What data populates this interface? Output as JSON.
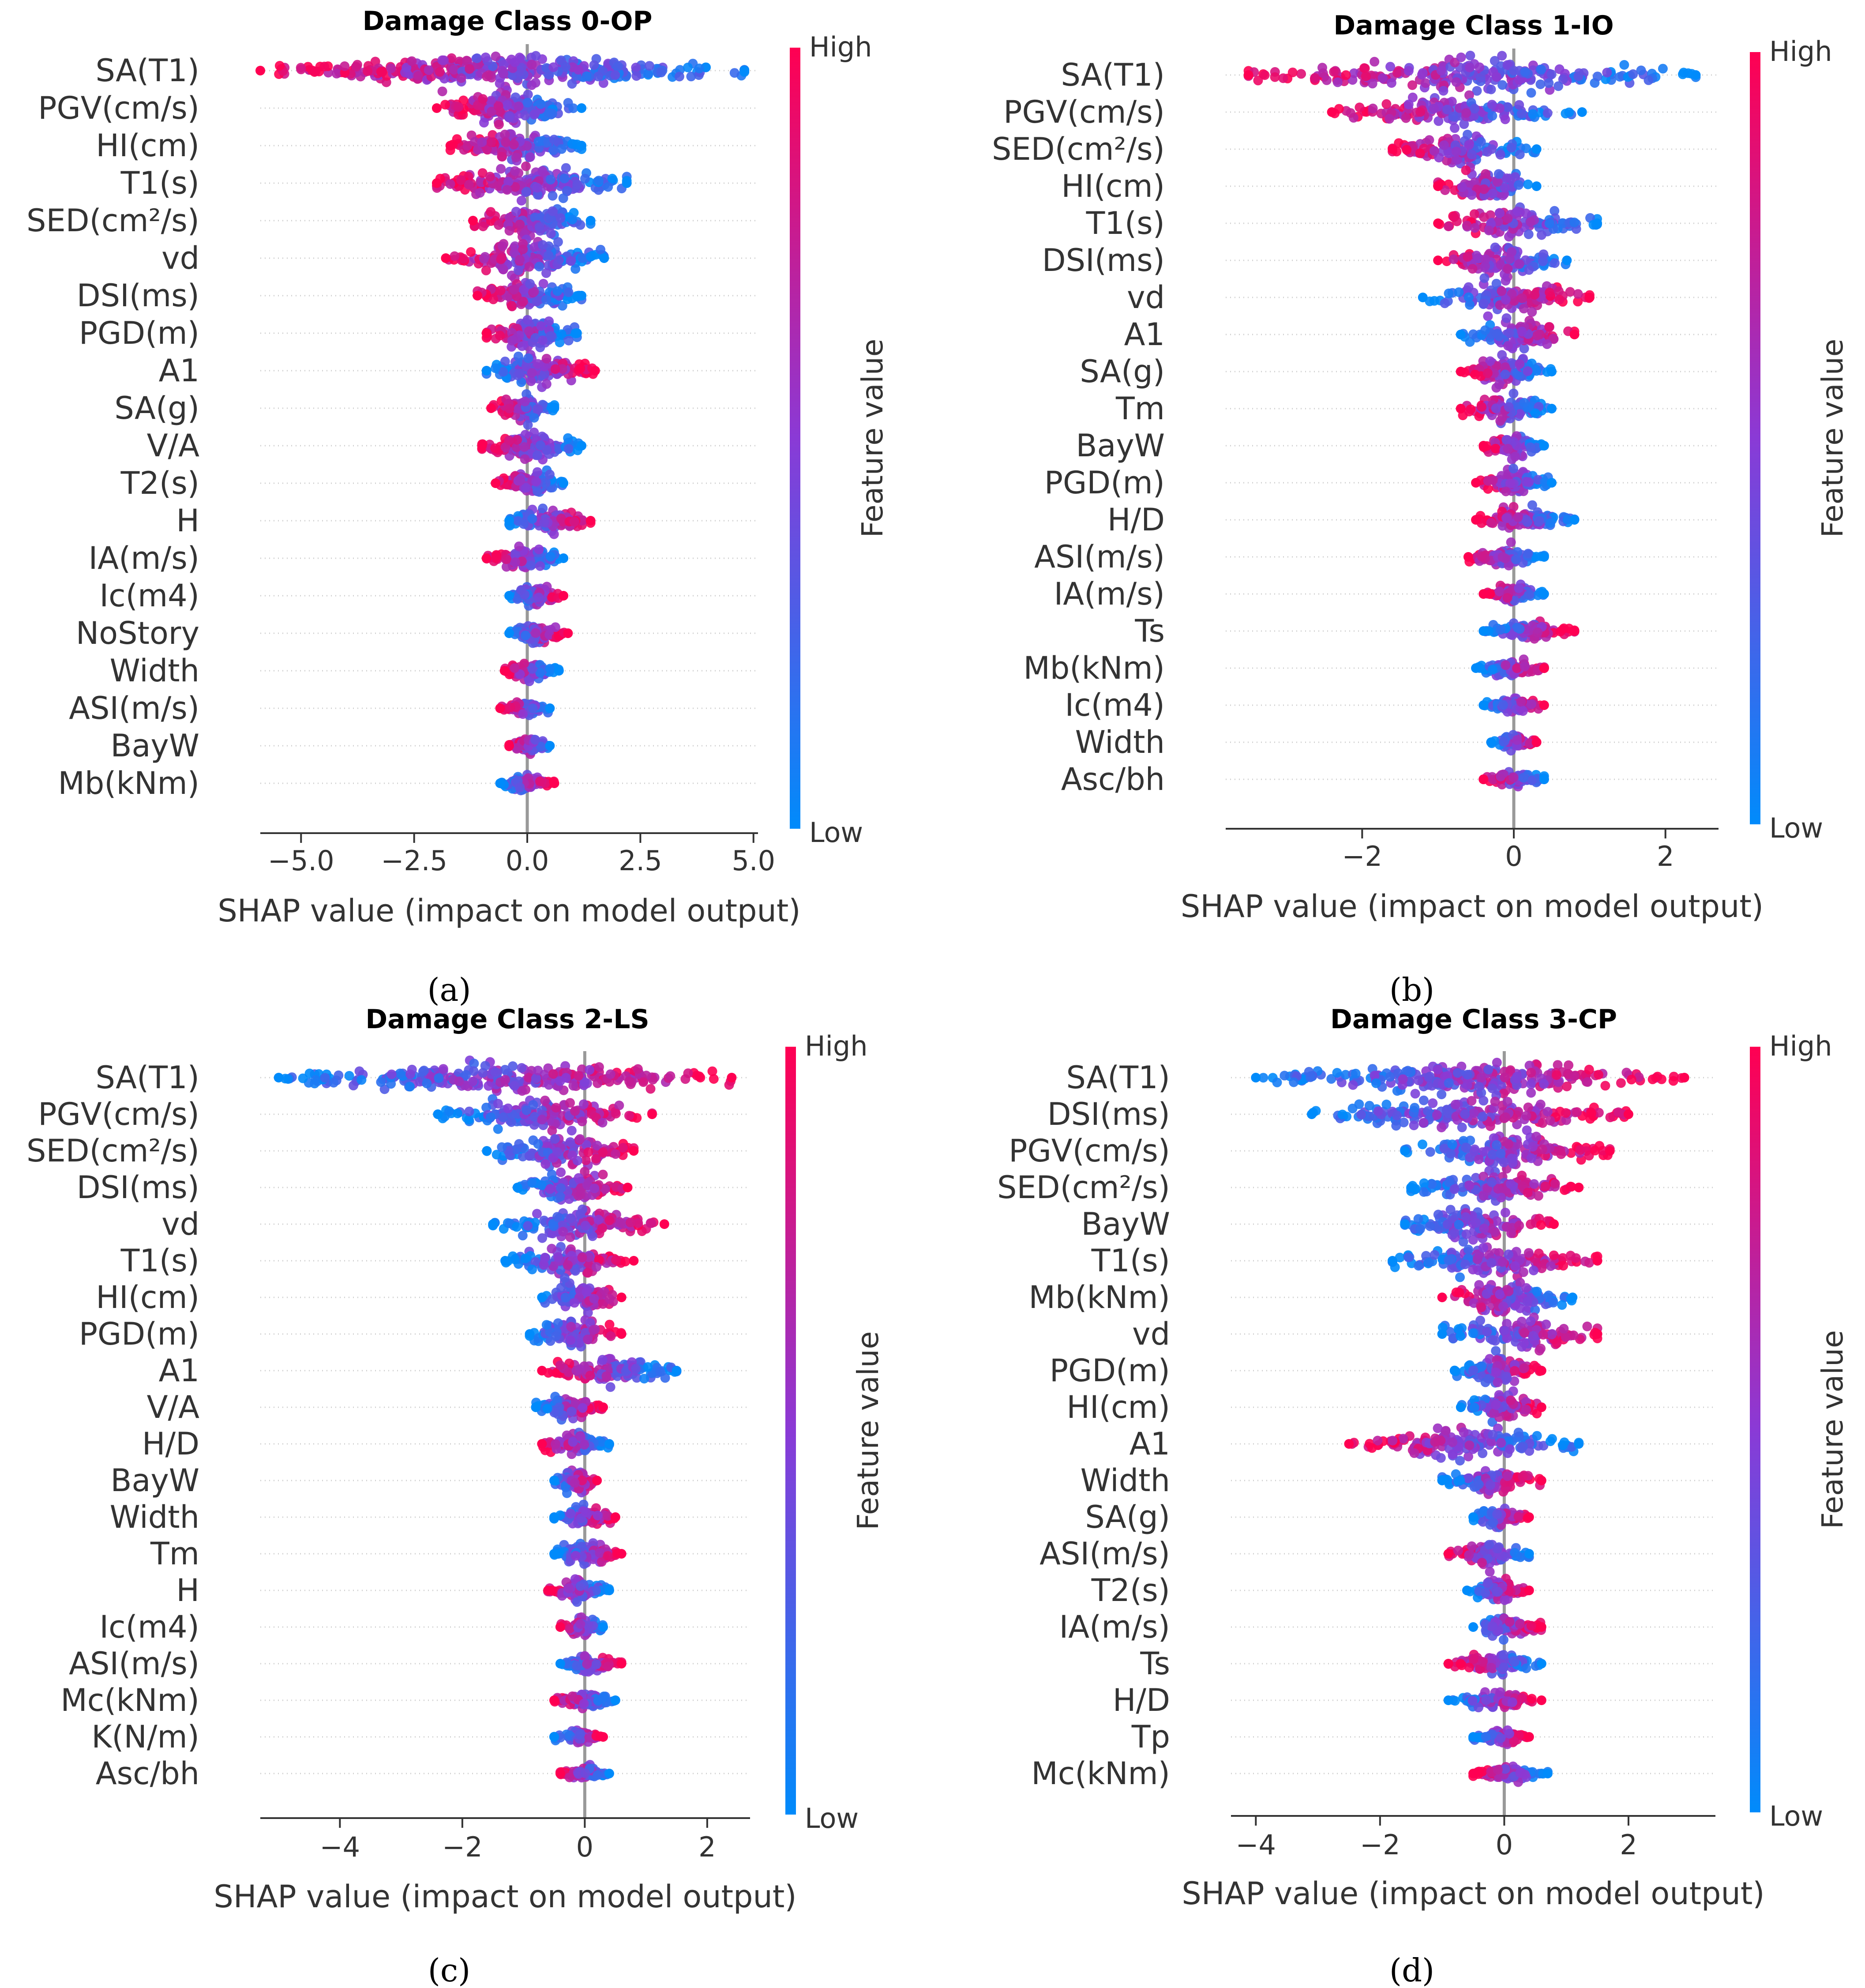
{
  "chart_data": [
    {
      "type": "scatter",
      "subtype": "shap-beeswarm",
      "title": "Damage Class 0-OP",
      "caption": "(a)",
      "xlabel": "SHAP value (impact on model output)",
      "xlim": [
        -5.9,
        5.1
      ],
      "xticks": [
        -5.0,
        -2.5,
        0.0,
        2.5,
        5.0
      ],
      "xtick_labels": [
        "−5.0",
        "−2.5",
        "0.0",
        "2.5",
        "5.0"
      ],
      "colorbar": {
        "label": "Feature value",
        "high": "High",
        "low": "Low"
      },
      "features": [
        {
          "name": "SA(T1)",
          "min": -5.9,
          "max": 4.8,
          "low_side": "right"
        },
        {
          "name": "PGV(cm/s)",
          "min": -2.0,
          "max": 1.2,
          "low_side": "right"
        },
        {
          "name": "HI(cm)",
          "min": -1.7,
          "max": 1.2,
          "low_side": "right"
        },
        {
          "name": "T1(s)",
          "min": -2.0,
          "max": 2.2,
          "low_side": "right"
        },
        {
          "name": "SED(cm²/s)",
          "min": -1.2,
          "max": 1.4,
          "low_side": "right"
        },
        {
          "name": "vd",
          "min": -1.8,
          "max": 1.7,
          "low_side": "right"
        },
        {
          "name": "DSI(ms)",
          "min": -1.1,
          "max": 1.2,
          "low_side": "right"
        },
        {
          "name": "PGD(m)",
          "min": -0.9,
          "max": 1.1,
          "low_side": "right"
        },
        {
          "name": "A1",
          "min": -0.9,
          "max": 1.5,
          "low_side": "left"
        },
        {
          "name": "SA(g)",
          "min": -0.8,
          "max": 0.6,
          "low_side": "right"
        },
        {
          "name": "V/A",
          "min": -1.0,
          "max": 1.2,
          "low_side": "right"
        },
        {
          "name": "T2(s)",
          "min": -0.7,
          "max": 0.8,
          "low_side": "right"
        },
        {
          "name": "H",
          "min": -0.4,
          "max": 1.4,
          "low_side": "left"
        },
        {
          "name": "IA(m/s)",
          "min": -0.9,
          "max": 0.8,
          "low_side": "right"
        },
        {
          "name": "Ic(m4)",
          "min": -0.4,
          "max": 0.8,
          "low_side": "left"
        },
        {
          "name": "NoStory",
          "min": -0.4,
          "max": 0.9,
          "low_side": "left"
        },
        {
          "name": "Width",
          "min": -0.5,
          "max": 0.7,
          "low_side": "right"
        },
        {
          "name": "ASI(m/s)",
          "min": -0.6,
          "max": 0.5,
          "low_side": "right"
        },
        {
          "name": "BayW",
          "min": -0.4,
          "max": 0.5,
          "low_side": "right"
        },
        {
          "name": "Mb(kNm)",
          "min": -0.6,
          "max": 0.6,
          "low_side": "left"
        }
      ]
    },
    {
      "type": "scatter",
      "subtype": "shap-beeswarm",
      "title": "Damage Class 1-IO",
      "caption": "(b)",
      "xlabel": "SHAP value (impact on model output)",
      "xlim": [
        -3.8,
        2.7
      ],
      "xticks": [
        -2,
        0,
        2
      ],
      "xtick_labels": [
        "−2",
        "0",
        "2"
      ],
      "colorbar": {
        "label": "Feature value",
        "high": "High",
        "low": "Low"
      },
      "features": [
        {
          "name": "SA(T1)",
          "min": -3.5,
          "max": 2.4,
          "low_side": "right"
        },
        {
          "name": "PGV(cm/s)",
          "min": -2.4,
          "max": 0.9,
          "low_side": "right"
        },
        {
          "name": "SED(cm²/s)",
          "min": -1.6,
          "max": 0.3,
          "low_side": "right"
        },
        {
          "name": "HI(cm)",
          "min": -1.0,
          "max": 0.3,
          "low_side": "right"
        },
        {
          "name": "T1(s)",
          "min": -1.0,
          "max": 1.1,
          "low_side": "right"
        },
        {
          "name": "DSI(ms)",
          "min": -1.0,
          "max": 0.7,
          "low_side": "right"
        },
        {
          "name": "vd",
          "min": -1.2,
          "max": 1.0,
          "low_side": "left"
        },
        {
          "name": "A1",
          "min": -0.7,
          "max": 0.8,
          "low_side": "left"
        },
        {
          "name": "SA(g)",
          "min": -0.7,
          "max": 0.5,
          "low_side": "right"
        },
        {
          "name": "Tm",
          "min": -0.7,
          "max": 0.5,
          "low_side": "right"
        },
        {
          "name": "BayW",
          "min": -0.4,
          "max": 0.4,
          "low_side": "right"
        },
        {
          "name": "PGD(m)",
          "min": -0.5,
          "max": 0.5,
          "low_side": "right"
        },
        {
          "name": "H/D",
          "min": -0.5,
          "max": 0.8,
          "low_side": "right"
        },
        {
          "name": "ASI(m/s)",
          "min": -0.6,
          "max": 0.4,
          "low_side": "right"
        },
        {
          "name": "IA(m/s)",
          "min": -0.4,
          "max": 0.4,
          "low_side": "right"
        },
        {
          "name": "Ts",
          "min": -0.4,
          "max": 0.8,
          "low_side": "left"
        },
        {
          "name": "Mb(kNm)",
          "min": -0.5,
          "max": 0.4,
          "low_side": "left"
        },
        {
          "name": "Ic(m4)",
          "min": -0.4,
          "max": 0.4,
          "low_side": "left"
        },
        {
          "name": "Width",
          "min": -0.3,
          "max": 0.3,
          "low_side": "left"
        },
        {
          "name": "Asc/bh",
          "min": -0.4,
          "max": 0.4,
          "low_side": "right"
        }
      ]
    },
    {
      "type": "scatter",
      "subtype": "shap-beeswarm",
      "title": "Damage Class 2-LS",
      "caption": "(c)",
      "xlabel": "SHAP value (impact on model output)",
      "xlim": [
        -5.3,
        2.7
      ],
      "xticks": [
        -4,
        -2,
        0,
        2
      ],
      "xtick_labels": [
        "−4",
        "−2",
        "0",
        "2"
      ],
      "colorbar": {
        "label": "Feature value",
        "high": "High",
        "low": "Low"
      },
      "features": [
        {
          "name": "SA(T1)",
          "min": -5.0,
          "max": 2.4,
          "low_side": "left"
        },
        {
          "name": "PGV(cm/s)",
          "min": -2.4,
          "max": 1.1,
          "low_side": "left"
        },
        {
          "name": "SED(cm²/s)",
          "min": -1.6,
          "max": 0.8,
          "low_side": "left"
        },
        {
          "name": "DSI(ms)",
          "min": -1.1,
          "max": 0.7,
          "low_side": "left"
        },
        {
          "name": "vd",
          "min": -1.5,
          "max": 1.3,
          "low_side": "left"
        },
        {
          "name": "T1(s)",
          "min": -1.3,
          "max": 0.8,
          "low_side": "left"
        },
        {
          "name": "HI(cm)",
          "min": -0.7,
          "max": 0.6,
          "low_side": "left"
        },
        {
          "name": "PGD(m)",
          "min": -0.9,
          "max": 0.6,
          "low_side": "left"
        },
        {
          "name": "A1",
          "min": -0.7,
          "max": 1.5,
          "low_side": "right"
        },
        {
          "name": "V/A",
          "min": -0.8,
          "max": 0.3,
          "low_side": "left"
        },
        {
          "name": "H/D",
          "min": -0.7,
          "max": 0.4,
          "low_side": "right"
        },
        {
          "name": "BayW",
          "min": -0.5,
          "max": 0.2,
          "low_side": "left"
        },
        {
          "name": "Width",
          "min": -0.5,
          "max": 0.5,
          "low_side": "left"
        },
        {
          "name": "Tm",
          "min": -0.5,
          "max": 0.6,
          "low_side": "left"
        },
        {
          "name": "H",
          "min": -0.6,
          "max": 0.4,
          "low_side": "right"
        },
        {
          "name": "Ic(m4)",
          "min": -0.4,
          "max": 0.3,
          "low_side": "right"
        },
        {
          "name": "ASI(m/s)",
          "min": -0.4,
          "max": 0.6,
          "low_side": "left"
        },
        {
          "name": "Mc(kNm)",
          "min": -0.5,
          "max": 0.5,
          "low_side": "right"
        },
        {
          "name": "K(N/m)",
          "min": -0.5,
          "max": 0.3,
          "low_side": "left"
        },
        {
          "name": "Asc/bh",
          "min": -0.4,
          "max": 0.4,
          "low_side": "right"
        }
      ]
    },
    {
      "type": "scatter",
      "subtype": "shap-beeswarm",
      "title": "Damage Class 3-CP",
      "caption": "(d)",
      "xlabel": "SHAP value (impact on model output)",
      "xlim": [
        -4.4,
        3.4
      ],
      "xticks": [
        -4,
        -2,
        0,
        2
      ],
      "xtick_labels": [
        "−4",
        "−2",
        "0",
        "2"
      ],
      "colorbar": {
        "label": "Feature value",
        "high": "High",
        "low": "Low"
      },
      "features": [
        {
          "name": "SA(T1)",
          "min": -4.0,
          "max": 2.9,
          "low_side": "left"
        },
        {
          "name": "DSI(ms)",
          "min": -3.1,
          "max": 2.0,
          "low_side": "left"
        },
        {
          "name": "PGV(cm/s)",
          "min": -1.6,
          "max": 1.7,
          "low_side": "left"
        },
        {
          "name": "SED(cm²/s)",
          "min": -1.5,
          "max": 1.2,
          "low_side": "left"
        },
        {
          "name": "BayW",
          "min": -1.6,
          "max": 0.8,
          "low_side": "left"
        },
        {
          "name": "T1(s)",
          "min": -1.8,
          "max": 1.5,
          "low_side": "left"
        },
        {
          "name": "Mb(kNm)",
          "min": -1.0,
          "max": 1.1,
          "low_side": "right"
        },
        {
          "name": "vd",
          "min": -1.0,
          "max": 1.5,
          "low_side": "left"
        },
        {
          "name": "PGD(m)",
          "min": -0.8,
          "max": 0.6,
          "low_side": "left"
        },
        {
          "name": "HI(cm)",
          "min": -0.7,
          "max": 0.6,
          "low_side": "left"
        },
        {
          "name": "A1",
          "min": -2.5,
          "max": 1.2,
          "low_side": "right"
        },
        {
          "name": "Width",
          "min": -1.0,
          "max": 0.6,
          "low_side": "left"
        },
        {
          "name": "SA(g)",
          "min": -0.5,
          "max": 0.4,
          "low_side": "left"
        },
        {
          "name": "ASI(m/s)",
          "min": -0.9,
          "max": 0.4,
          "low_side": "right"
        },
        {
          "name": "T2(s)",
          "min": -0.6,
          "max": 0.4,
          "low_side": "left"
        },
        {
          "name": "IA(m/s)",
          "min": -0.5,
          "max": 0.6,
          "low_side": "left"
        },
        {
          "name": "Ts",
          "min": -0.9,
          "max": 0.6,
          "low_side": "right"
        },
        {
          "name": "H/D",
          "min": -0.9,
          "max": 0.6,
          "low_side": "left"
        },
        {
          "name": "Tp",
          "min": -0.5,
          "max": 0.4,
          "low_side": "left"
        },
        {
          "name": "Mc(kNm)",
          "min": -0.5,
          "max": 0.7,
          "low_side": "right"
        }
      ]
    }
  ],
  "colors": {
    "high": "#ff0052",
    "mid": "#8a2be2",
    "low": "#008bfb",
    "axis": "#333333",
    "zero_line": "#999999",
    "grid": "#cccccc"
  }
}
